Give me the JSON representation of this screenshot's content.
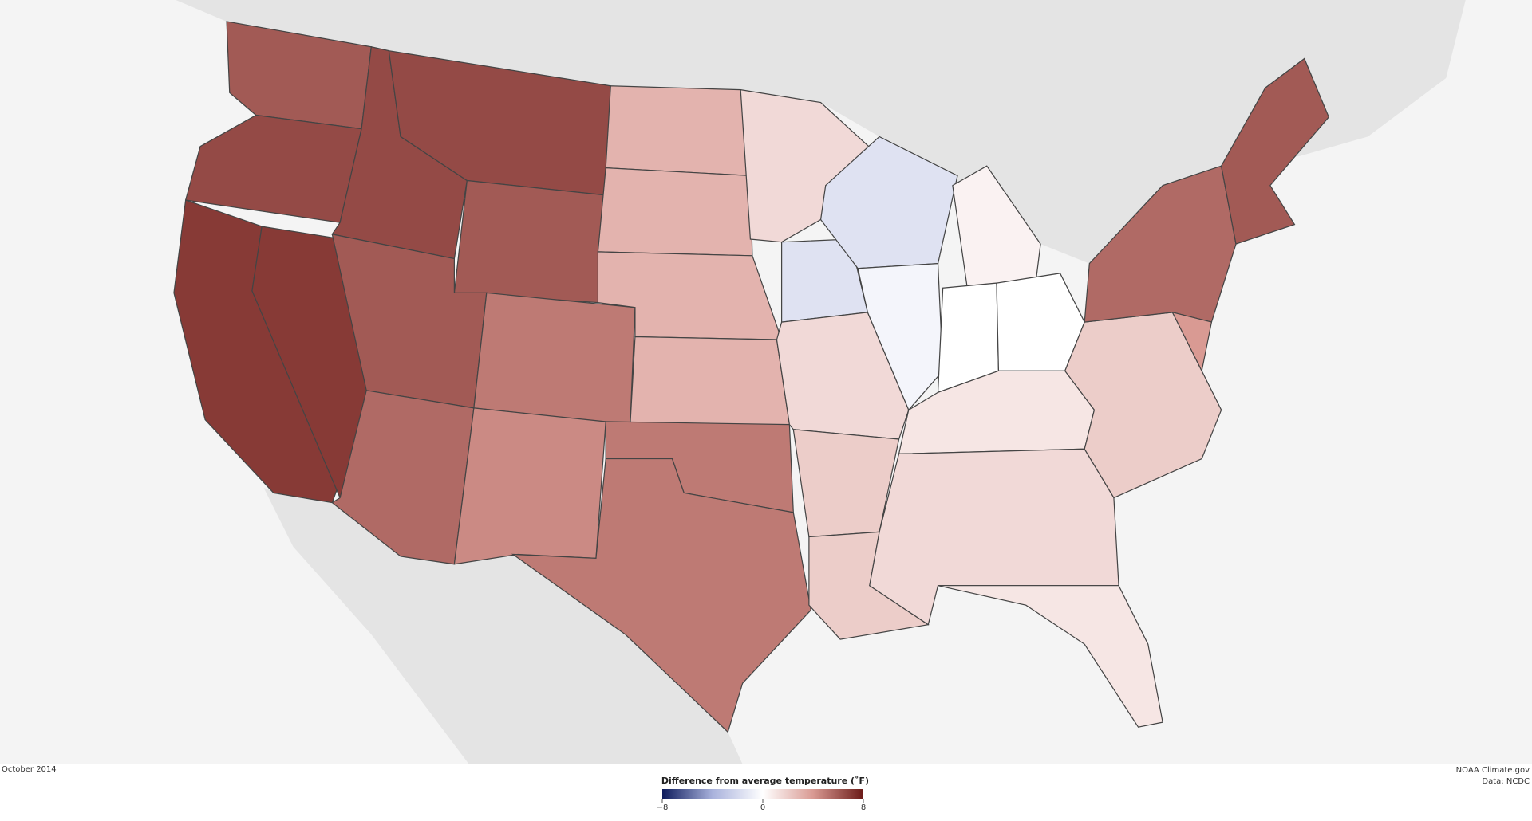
{
  "map": {
    "date": "October 2014",
    "credit": "NOAA Climate.gov",
    "source": "Data: NCDC",
    "anomalies": [
      6,
      6.5,
      7,
      7,
      6.5,
      6.5,
      6,
      6,
      5.5,
      5,
      4.5,
      3,
      3,
      3,
      3,
      5,
      5,
      1.5,
      -1.5,
      1.5,
      2,
      2,
      -1.5,
      -0.5,
      0.5,
      0,
      0,
      1,
      1.5,
      1,
      2,
      5.5,
      6,
      4
    ]
  },
  "legend": {
    "title": "Difference from average temperature (˚F)",
    "lim": [
      -8,
      8
    ],
    "ticks": [
      {
        "value": -8,
        "label": "−8"
      },
      0,
      8
    ],
    "colors": [
      "#0d1b5c",
      "#a9b2dc",
      "#ffffff",
      "#d99a93",
      "#6b1a17"
    ]
  }
}
